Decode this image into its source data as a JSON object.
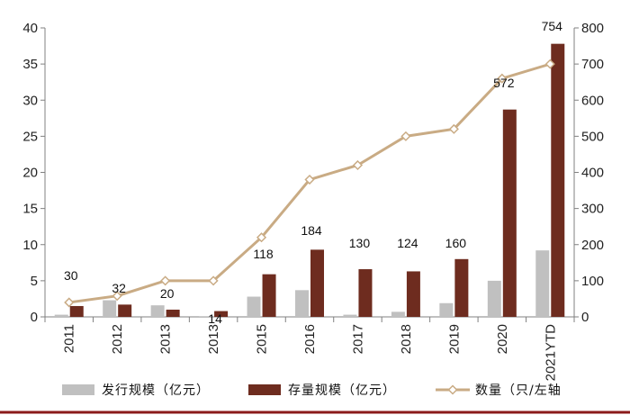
{
  "chart_data": {
    "type": "bar",
    "categories": [
      "2011",
      "2012",
      "2013",
      "2013",
      "2015",
      "2016",
      "2017",
      "2018",
      "2019",
      "2020",
      "2021YTD"
    ],
    "series": [
      {
        "name": "发行规模（亿元）",
        "type": "bar",
        "axis": "left",
        "color": "#c0c0c0",
        "values": [
          0.3,
          2.3,
          1.6,
          0.1,
          2.8,
          3.7,
          0.3,
          0.7,
          1.9,
          5.0,
          9.2
        ]
      },
      {
        "name": "存量规模（亿元）",
        "type": "bar",
        "axis": "left",
        "color": "#6e2c1f",
        "values": [
          1.5,
          1.7,
          1.0,
          0.8,
          5.9,
          9.3,
          6.6,
          6.3,
          8.0,
          28.7,
          37.8
        ]
      },
      {
        "name": "数量（只/左轴",
        "type": "line",
        "axis": "right",
        "color": "#c9ab84",
        "values": [
          40,
          58,
          100,
          100,
          220,
          380,
          420,
          500,
          520,
          660,
          700
        ]
      }
    ],
    "data_labels": [
      "30",
      "32",
      "20",
      "14",
      "118",
      "184",
      "130",
      "124",
      "160",
      "572",
      "754"
    ],
    "left_axis": {
      "ylim": [
        0,
        40
      ],
      "ticks": [
        "0",
        "5",
        "10",
        "15",
        "20",
        "25",
        "30",
        "35",
        "40"
      ]
    },
    "right_axis": {
      "ylim": [
        0,
        800
      ],
      "ticks": [
        "0",
        "100",
        "200",
        "300",
        "400",
        "500",
        "600",
        "700",
        "800"
      ]
    },
    "grid": false,
    "legend_position": "bottom",
    "bottom_rule_color": "#8b1a1a"
  }
}
